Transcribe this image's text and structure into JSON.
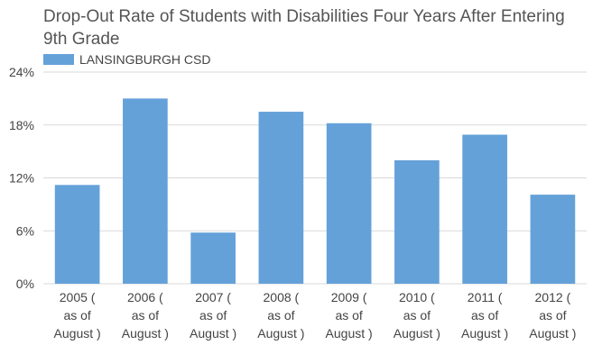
{
  "chart_data": {
    "type": "bar",
    "title": "Drop-Out Rate of Students with Disabilities Four Years After Entering 9th Grade",
    "xlabel": "",
    "ylabel": "",
    "ylim": [
      0,
      24
    ],
    "yticks": [
      "0%",
      "6%",
      "12%",
      "18%",
      "24%"
    ],
    "ytick_values": [
      0,
      6,
      12,
      18,
      24
    ],
    "grid": true,
    "legend_position": "top-left",
    "categories": [
      "2005 ( as of August )",
      "2006 ( as of August )",
      "2007 ( as of August )",
      "2008 ( as of August )",
      "2009 ( as of August )",
      "2010 ( as of August )",
      "2011 ( as of August )",
      "2012 ( as of August )"
    ],
    "category_lines": [
      [
        "2005 (",
        "as of",
        "August )"
      ],
      [
        "2006 (",
        "as of",
        "August )"
      ],
      [
        "2007 (",
        "as of",
        "August )"
      ],
      [
        "2008 (",
        "as of",
        "August )"
      ],
      [
        "2009 (",
        "as of",
        "August )"
      ],
      [
        "2010 (",
        "as of",
        "August )"
      ],
      [
        "2011 (",
        "as of",
        "August )"
      ],
      [
        "2012 (",
        "as of",
        "August )"
      ]
    ],
    "series": [
      {
        "name": "LANSINGBURGH CSD",
        "color": "#64a1d9",
        "values": [
          11.2,
          21.0,
          5.8,
          19.5,
          18.2,
          14.0,
          16.9,
          10.1
        ]
      }
    ]
  }
}
